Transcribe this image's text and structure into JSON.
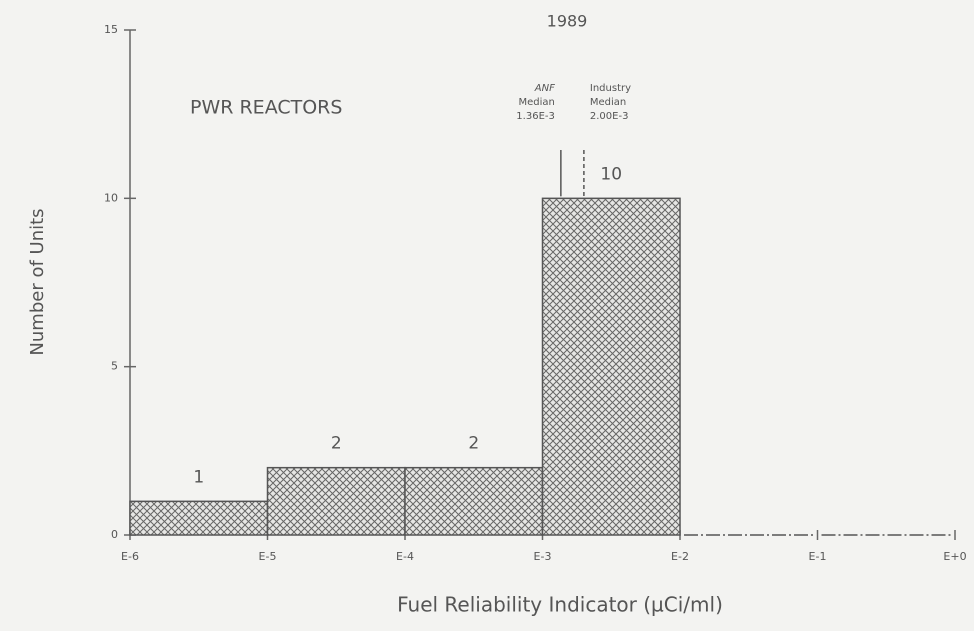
{
  "chart_data": {
    "type": "histogram",
    "title": "1989",
    "annotation": "PWR REACTORS",
    "xlabel": "Fuel Reliability Indicator (µCi/ml)",
    "ylabel": "Number of Units",
    "x_scale": "log",
    "bins": [
      1e-06,
      1e-05,
      0.0001,
      0.001,
      0.01,
      0.1,
      1
    ],
    "values": [
      1,
      2,
      2,
      10,
      0,
      0
    ],
    "color": "#555555",
    "xlim": [
      1e-06,
      1
    ],
    "xticks": [
      {
        "value": 1e-06,
        "label": "E-6"
      },
      {
        "value": 1e-05,
        "label": "E-5"
      },
      {
        "value": 0.0001,
        "label": "E-4"
      },
      {
        "value": 0.001,
        "label": "E-3"
      },
      {
        "value": 0.01,
        "label": "E-2"
      },
      {
        "value": 0.1,
        "label": "E-1"
      },
      {
        "value": 1,
        "label": "E+0"
      }
    ],
    "ylim": [
      0,
      15
    ],
    "yticks": [
      0,
      5,
      10,
      15
    ],
    "medians": [
      {
        "name": "ANF",
        "text": "Median",
        "value": 0.00136,
        "value_label": "1.36E-3",
        "style": "solid"
      },
      {
        "name": "Industry",
        "text": "Median",
        "value": 0.002,
        "value_label": "2.00E-3",
        "style": "dashed"
      }
    ]
  }
}
